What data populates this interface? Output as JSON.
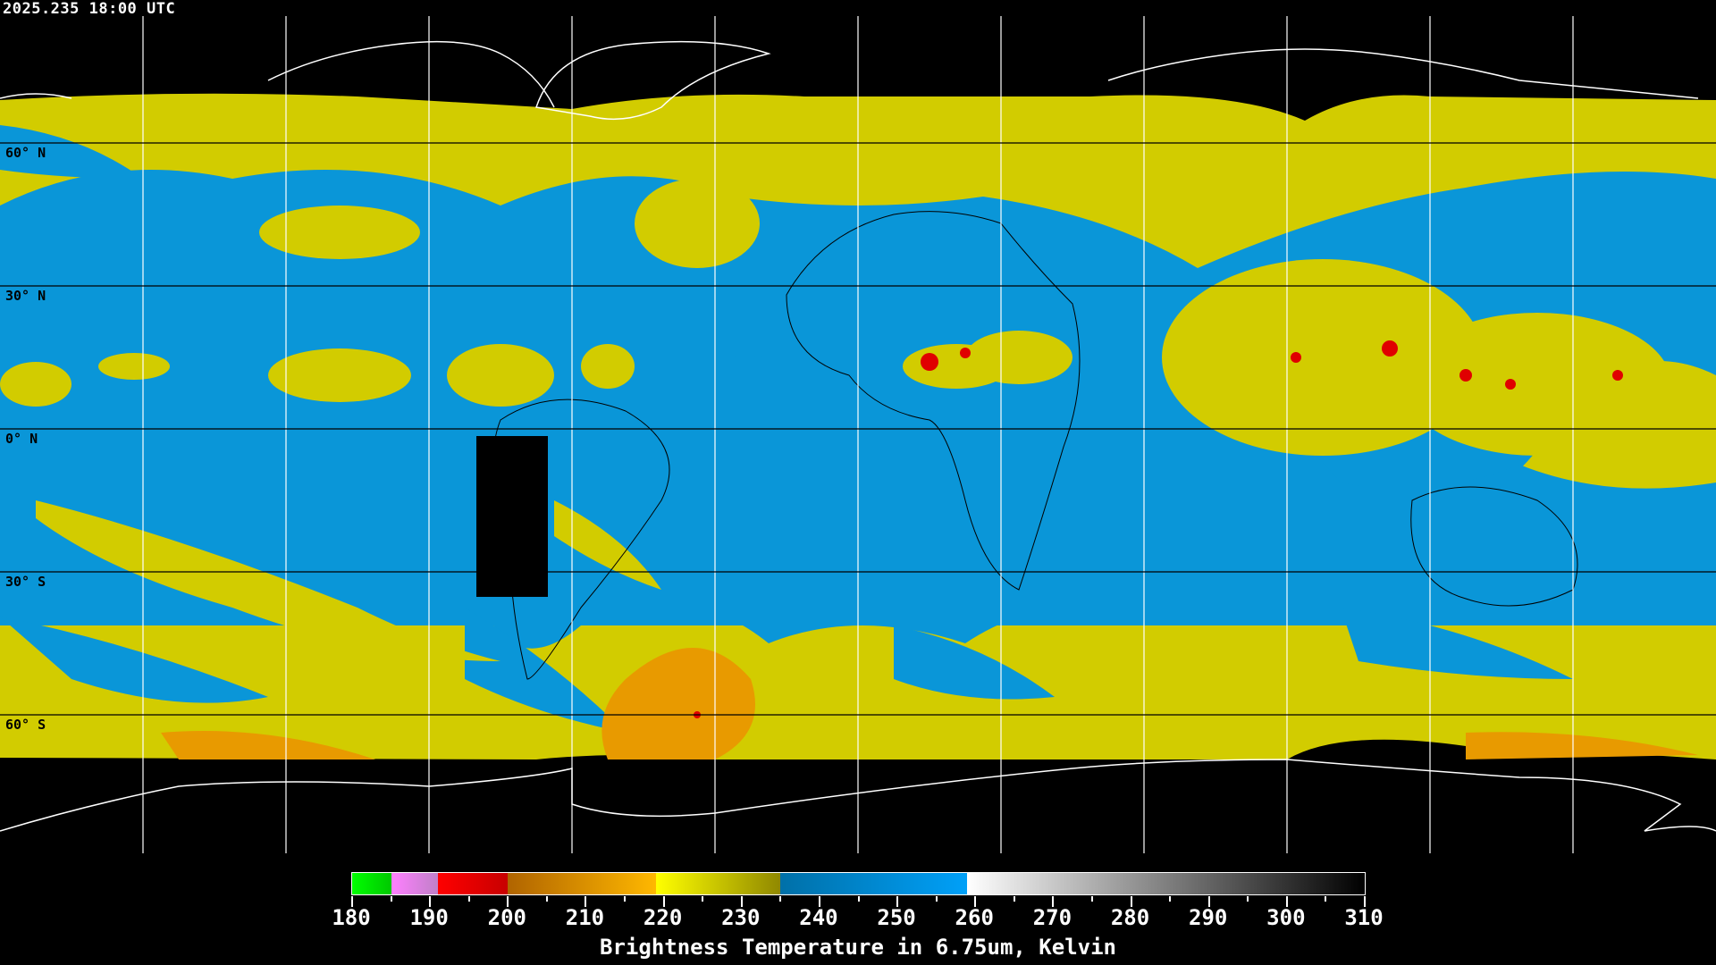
{
  "timestamp": "2025.235 18:00 UTC",
  "map": {
    "projection": "equirectangular",
    "lon_range": [
      -180,
      180
    ],
    "lat_range": [
      -90,
      90
    ],
    "grid_interval_deg": 30,
    "lat_labels": [
      "60° N",
      "30° N",
      "0° N",
      "30° S",
      "60° S"
    ],
    "colors": {
      "background": "#000000",
      "moist": "#0a96d8",
      "mid": "#d2cc00",
      "cold": "#e89a00",
      "coldest": "#e00000",
      "coast_outline": "#ffffff",
      "grid": "#000000"
    }
  },
  "colorbar": {
    "min": 180,
    "max": 310,
    "tick_labels": [
      "180",
      "190",
      "200",
      "210",
      "220",
      "230",
      "240",
      "250",
      "260",
      "270",
      "280",
      "290",
      "300",
      "310"
    ],
    "segments": [
      {
        "from": 180,
        "to": 185,
        "colors": [
          "#00ff00",
          "#00c800"
        ]
      },
      {
        "from": 185,
        "to": 191,
        "colors": [
          "#ff80ff",
          "#c080c8"
        ]
      },
      {
        "from": 191,
        "to": 200,
        "colors": [
          "#ff0000",
          "#c80000"
        ]
      },
      {
        "from": 200,
        "to": 219,
        "colors": [
          "#b06400",
          "#ffb800"
        ]
      },
      {
        "from": 219,
        "to": 235,
        "colors": [
          "#ffff00",
          "#908800"
        ]
      },
      {
        "from": 235,
        "to": 259,
        "colors": [
          "#0070a8",
          "#00a0f8"
        ]
      },
      {
        "from": 259,
        "to": 310,
        "colors": [
          "#ffffff",
          "#000000"
        ]
      }
    ],
    "title": "Brightness Temperature in 6.75um, Kelvin"
  }
}
